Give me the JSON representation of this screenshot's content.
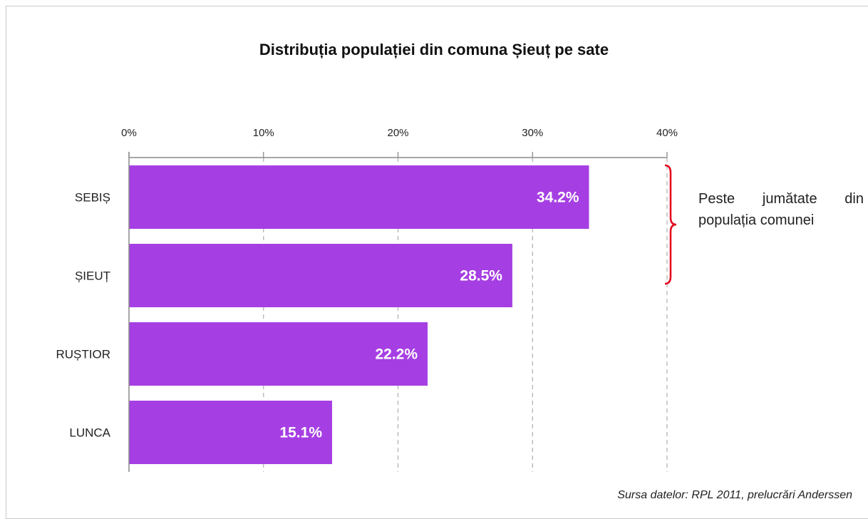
{
  "chart_data": {
    "type": "bar",
    "orientation": "horizontal",
    "title": "Distribuția populației din comuna Șieuț pe sate",
    "categories": [
      "SEBIȘ",
      "ȘIEUȚ",
      "RUȘTIOR",
      "LUNCA"
    ],
    "values": [
      34.2,
      28.5,
      22.2,
      15.1
    ],
    "value_labels": [
      "34.2%",
      "28.5%",
      "22.2%",
      "15.1%"
    ],
    "xlim": [
      0,
      40
    ],
    "x_ticks": [
      0,
      10,
      20,
      30,
      40
    ],
    "x_tick_labels": [
      "0%",
      "10%",
      "20%",
      "30%",
      "40%"
    ],
    "x_axis_position": "top",
    "grid": "vertical dashed",
    "bar_color": "#a63fe3",
    "annotation": {
      "line1": "Peste jumătate din",
      "line2": "populația comunei",
      "bracket_color": "#e3001b",
      "spans_categories": [
        "SEBIȘ",
        "ȘIEUȚ"
      ]
    },
    "source": "Sursa datelor: RPL 2011, prelucrări Anderssen"
  }
}
